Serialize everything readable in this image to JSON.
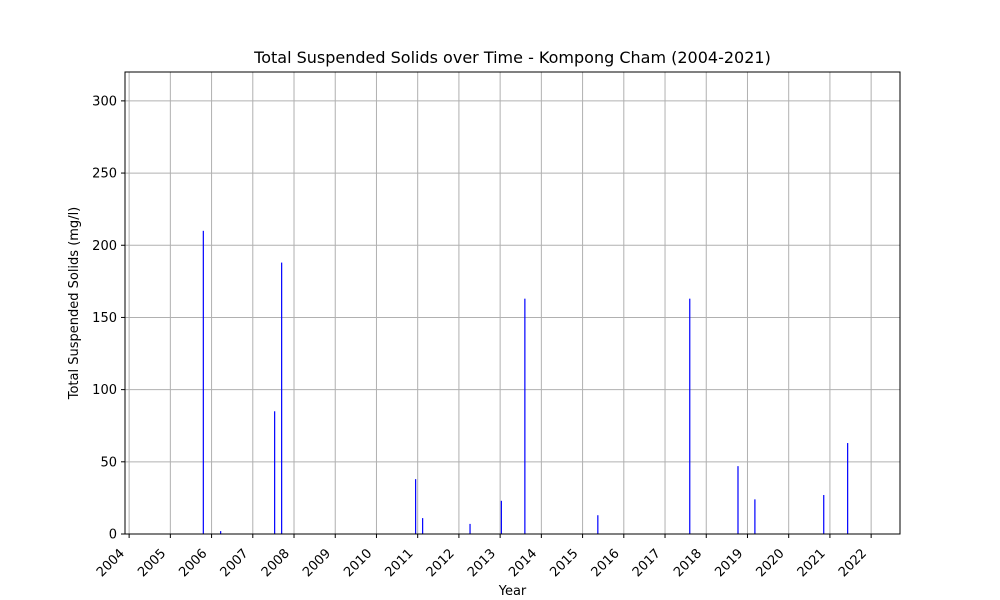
{
  "chart_data": {
    "type": "bar",
    "title": "Total Suspended Solids over Time - Kompong Cham (2004-2021)",
    "xlabel": "Year",
    "ylabel": "Total Suspended Solids (mg/l)",
    "grid": true,
    "bar_color": "#0000ff",
    "xlim": [
      2003.9,
      2022.7
    ],
    "ylim": [
      0,
      320
    ],
    "xticks": [
      2004,
      2005,
      2006,
      2007,
      2008,
      2009,
      2010,
      2011,
      2012,
      2013,
      2014,
      2015,
      2016,
      2017,
      2018,
      2019,
      2020,
      2021,
      2022
    ],
    "yticks": [
      0,
      50,
      100,
      150,
      200,
      250,
      300
    ],
    "series": [
      {
        "x": [
          2005.8,
          2006.22,
          2007.53,
          2007.7,
          2010.95,
          2011.12,
          2012.27,
          2013.03,
          2013.6,
          2015.37,
          2017.6,
          2018.77,
          2019.18,
          2020.85,
          2021.43
        ],
        "values": [
          210,
          2,
          85,
          188,
          38,
          11,
          7,
          23,
          163,
          13,
          163,
          47,
          24,
          27,
          63
        ]
      }
    ]
  }
}
